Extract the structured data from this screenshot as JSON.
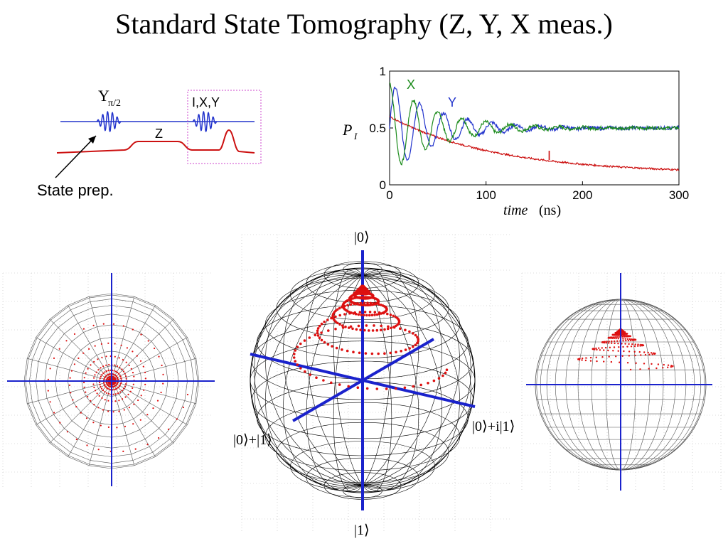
{
  "title": "Standard State Tomography (Z, Y, X meas.)",
  "circuit": {
    "prep_pulse_label": "Y",
    "prep_pulse_subscript": "π/2",
    "z_label": "Z",
    "meas_label": "I,X,Y",
    "state_prep_label": "State prep.",
    "colors": {
      "microwave": "#2233cc",
      "bias": "#cc1111",
      "box": "#cc44cc"
    }
  },
  "plot": {
    "ylabel": "P",
    "ylabel_sub": "I",
    "xlabel_italic": "time",
    "xlabel_units": "(ns)",
    "chart_data": {
      "type": "line",
      "xlim": [
        0,
        300
      ],
      "ylim": [
        0,
        1
      ],
      "xticks": [
        "0",
        "100",
        "200",
        "300"
      ],
      "yticks": [
        "0",
        "0.5",
        "1"
      ],
      "series": [
        {
          "name": "X",
          "color": "#1a8a1a"
        },
        {
          "name": "Y",
          "color": "#2233cc"
        },
        {
          "name": "I",
          "color": "#cc1111"
        }
      ]
    }
  },
  "bloch": {
    "label_top": "|0⟩",
    "label_bottom": "|1⟩",
    "label_left": "|0⟩+|1⟩",
    "label_right": "|0⟩+i|1⟩",
    "colors": {
      "axis": "#1a22cc",
      "trajectory": "#dd1111",
      "mesh": "#000000"
    }
  }
}
